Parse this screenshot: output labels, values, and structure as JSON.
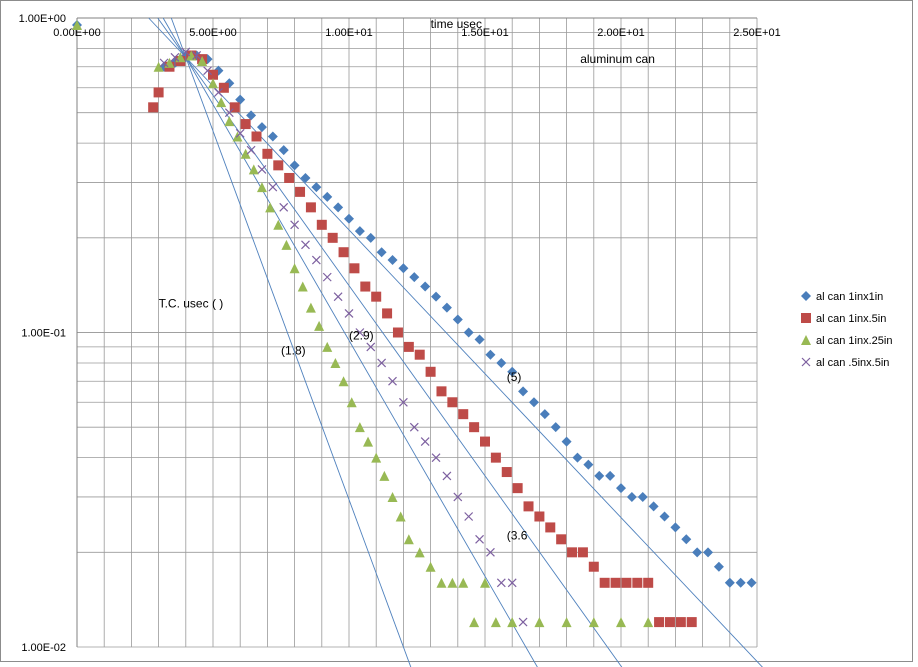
{
  "chart_data": {
    "type": "scatter",
    "title": "aluminum can",
    "xlabel": "time usec",
    "ylabel": "T.C. usec ( )",
    "xlim": [
      0,
      25
    ],
    "ylim": [
      0.01,
      1
    ],
    "y_scale": "log",
    "x_ticks": [
      {
        "value": 0,
        "label": "0.00E+00"
      },
      {
        "value": 5,
        "label": "5.00E+00"
      },
      {
        "value": 10,
        "label": "1.00E+01"
      },
      {
        "value": 15,
        "label": "1.50E+01"
      },
      {
        "value": 20,
        "label": "2.00E+01"
      },
      {
        "value": 25,
        "label": "2.50E+01"
      }
    ],
    "y_ticks": [
      {
        "value": 1,
        "label": "1.00E+00"
      },
      {
        "value": 0.1,
        "label": "1.00E-01"
      },
      {
        "value": 0.01,
        "label": "1.00E-02"
      }
    ],
    "grid": true,
    "legend_position": "right",
    "series": [
      {
        "name": "al can 1inx1in",
        "marker": "diamond",
        "color": "#4a7ebb",
        "x": [
          0,
          3.2,
          3.6,
          4.0,
          4.4,
          4.8,
          5.2,
          5.6,
          6.0,
          6.4,
          6.8,
          7.2,
          7.6,
          8.0,
          8.4,
          8.8,
          9.2,
          9.6,
          10.0,
          10.4,
          10.8,
          11.2,
          11.6,
          12.0,
          12.4,
          12.8,
          13.2,
          13.6,
          14.0,
          14.4,
          14.8,
          15.2,
          15.6,
          16.0,
          16.4,
          16.8,
          17.2,
          17.6,
          18.0,
          18.4,
          18.8,
          19.2,
          19.6,
          20.0,
          20.4,
          20.8,
          21.2,
          21.6,
          22.0,
          22.4,
          22.8,
          23.2,
          23.6,
          24.0,
          24.4,
          24.8
        ],
        "y": [
          0.95,
          0.7,
          0.72,
          0.75,
          0.76,
          0.74,
          0.68,
          0.62,
          0.55,
          0.49,
          0.45,
          0.42,
          0.38,
          0.34,
          0.31,
          0.29,
          0.27,
          0.25,
          0.23,
          0.21,
          0.2,
          0.18,
          0.17,
          0.16,
          0.15,
          0.14,
          0.13,
          0.12,
          0.11,
          0.1,
          0.095,
          0.085,
          0.08,
          0.075,
          0.065,
          0.06,
          0.055,
          0.05,
          0.045,
          0.04,
          0.038,
          0.035,
          0.035,
          0.032,
          0.03,
          0.03,
          0.028,
          0.026,
          0.024,
          0.022,
          0.02,
          0.02,
          0.018,
          0.016,
          0.016,
          0.016
        ]
      },
      {
        "name": "al can 1inx.5in",
        "marker": "square",
        "color": "#be4b48",
        "x": [
          2.8,
          3.0,
          3.4,
          3.8,
          4.2,
          4.6,
          5.0,
          5.4,
          5.8,
          6.2,
          6.6,
          7.0,
          7.4,
          7.8,
          8.2,
          8.6,
          9.0,
          9.4,
          9.8,
          10.2,
          10.6,
          11.0,
          11.4,
          11.8,
          12.2,
          12.6,
          13.0,
          13.4,
          13.8,
          14.2,
          14.6,
          15.0,
          15.4,
          15.8,
          16.2,
          16.6,
          17.0,
          17.4,
          17.8,
          18.2,
          18.6,
          19.0,
          19.4,
          19.8,
          20.2,
          20.6,
          21.0,
          21.4,
          21.8,
          22.2,
          22.6
        ],
        "y": [
          0.52,
          0.58,
          0.7,
          0.73,
          0.76,
          0.74,
          0.66,
          0.6,
          0.52,
          0.46,
          0.42,
          0.37,
          0.34,
          0.31,
          0.28,
          0.25,
          0.22,
          0.2,
          0.18,
          0.16,
          0.14,
          0.13,
          0.115,
          0.1,
          0.09,
          0.085,
          0.075,
          0.065,
          0.06,
          0.055,
          0.05,
          0.045,
          0.04,
          0.036,
          0.032,
          0.028,
          0.026,
          0.024,
          0.022,
          0.02,
          0.02,
          0.018,
          0.016,
          0.016,
          0.016,
          0.016,
          0.016,
          0.012,
          0.012,
          0.012,
          0.012
        ]
      },
      {
        "name": "al can 1inx.25in",
        "marker": "triangle",
        "color": "#98b954",
        "x": [
          0,
          3.0,
          3.4,
          3.8,
          4.2,
          4.6,
          5.0,
          5.3,
          5.6,
          5.9,
          6.2,
          6.5,
          6.8,
          7.1,
          7.4,
          7.7,
          8.0,
          8.3,
          8.6,
          8.9,
          9.2,
          9.5,
          9.8,
          10.1,
          10.4,
          10.7,
          11.0,
          11.3,
          11.6,
          11.9,
          12.2,
          12.6,
          13.0,
          13.4,
          13.8,
          14.2,
          14.6,
          15.0,
          15.4,
          16.0,
          17.0,
          18.0,
          19.0,
          20.0,
          21.0
        ],
        "y": [
          0.95,
          0.7,
          0.72,
          0.75,
          0.76,
          0.73,
          0.62,
          0.54,
          0.47,
          0.42,
          0.37,
          0.33,
          0.29,
          0.25,
          0.22,
          0.19,
          0.16,
          0.14,
          0.12,
          0.105,
          0.09,
          0.08,
          0.07,
          0.06,
          0.05,
          0.045,
          0.04,
          0.035,
          0.03,
          0.026,
          0.022,
          0.02,
          0.018,
          0.016,
          0.016,
          0.016,
          0.012,
          0.016,
          0.012,
          0.012,
          0.012,
          0.012,
          0.012,
          0.012,
          0.012
        ]
      },
      {
        "name": "al can .5inx.5in",
        "marker": "x",
        "color": "#7d60a0",
        "x": [
          3.2,
          3.6,
          4.0,
          4.4,
          4.8,
          5.2,
          5.6,
          6.0,
          6.4,
          6.8,
          7.2,
          7.6,
          8.0,
          8.4,
          8.8,
          9.2,
          9.6,
          10.0,
          10.4,
          10.8,
          11.2,
          11.6,
          12.0,
          12.4,
          12.8,
          13.2,
          13.6,
          14.0,
          14.4,
          14.8,
          15.2,
          15.6,
          16.0,
          16.4
        ],
        "y": [
          0.72,
          0.75,
          0.78,
          0.76,
          0.68,
          0.58,
          0.5,
          0.43,
          0.38,
          0.33,
          0.29,
          0.25,
          0.22,
          0.19,
          0.17,
          0.15,
          0.13,
          0.115,
          0.1,
          0.09,
          0.08,
          0.07,
          0.06,
          0.05,
          0.045,
          0.04,
          0.035,
          0.03,
          0.026,
          0.022,
          0.02,
          0.016,
          0.016,
          0.012
        ]
      }
    ],
    "trendlines": [
      {
        "label": "(5)",
        "x": [
          4.0,
          24.5
        ],
        "y": [
          0.75,
          0.01
        ]
      },
      {
        "label": "(3.6",
        "x": [
          4.0,
          19.5
        ],
        "y": [
          0.75,
          0.01
        ]
      },
      {
        "label": "(2.9)",
        "x": [
          4.0,
          16.5
        ],
        "y": [
          0.75,
          0.01
        ]
      },
      {
        "label": "(1.8)",
        "x": [
          4.0,
          12.0
        ],
        "y": [
          0.75,
          0.01
        ]
      }
    ],
    "annotations": [
      {
        "text": "time usec",
        "x": 13.0,
        "y": 0.93
      },
      {
        "text": "aluminum can",
        "x": 18.5,
        "y": 0.72
      },
      {
        "text": "T.C. usec ( )",
        "x": 3.0,
        "y": 0.12
      },
      {
        "text": "(1.8)",
        "x": 7.5,
        "y": 0.085
      },
      {
        "text": "(2.9)",
        "x": 10.0,
        "y": 0.095
      },
      {
        "text": "(5)",
        "x": 15.8,
        "y": 0.07
      },
      {
        "text": "(3.6",
        "x": 15.8,
        "y": 0.022
      }
    ]
  }
}
